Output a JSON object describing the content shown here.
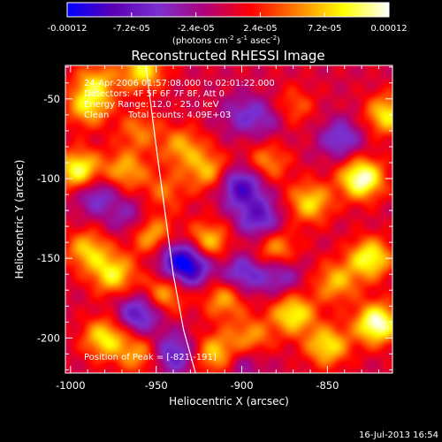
{
  "colorbar": {
    "tick_labels": [
      "-0.00012",
      "-7.2e-05",
      "-2.4e-05",
      "2.4e-05",
      "7.2e-05",
      "0.00012"
    ],
    "tick_values": [
      -0.00012,
      -7.2e-05,
      -2.4e-05,
      2.4e-05,
      7.2e-05,
      0.00012
    ],
    "range": [
      -0.00012,
      0.00012
    ],
    "colors": [
      "#0000ff",
      "#5a00b4",
      "#7a30d0",
      "#b00078",
      "#ff0000",
      "#ff8000",
      "#ffff00",
      "#ffffff"
    ],
    "unit_prefix": "(photons cm",
    "unit_sup1": "-2",
    "unit_mid": " s",
    "unit_sup2": "-1",
    "unit_mid2": " asec",
    "unit_sup3": "-2",
    "unit_suffix": ")"
  },
  "chart_data": {
    "type": "heatmap",
    "title": "Reconstructed RHESSI Image",
    "xlabel": "Heliocentric X (arcsec)",
    "ylabel": "Heliocentric Y (arcsec)",
    "xlim": [
      -1003,
      -812
    ],
    "ylim": [
      -222,
      -29
    ],
    "x_ticks": [
      -1000,
      -950,
      -900,
      -850
    ],
    "x_tick_labels": [
      "-1000",
      "-950",
      "-900",
      "-850"
    ],
    "y_ticks": [
      -50,
      -100,
      -150,
      -200
    ],
    "y_tick_labels": [
      "-50",
      "-100",
      "-150",
      "-200"
    ],
    "annotations": {
      "time_range": "24-Apr-2006 01:57:08.000 to 02:01:22.000",
      "detectors": "Detectors: 4F 5F 6F 7F 8F, Att 0",
      "energy": "Energy Range: 12.0 - 25.0 keV",
      "method": "Clean",
      "counts": "Total counts: 4.09E+03",
      "peak": "Position of Peak = [-821,-191]"
    },
    "peak_position": [
      -821,
      -191
    ],
    "limb_curve": [
      [
        -956,
        -29
      ],
      [
        -950,
        -80
      ],
      [
        -945,
        -120
      ],
      [
        -940,
        -160
      ],
      [
        -934,
        -195
      ],
      [
        -927,
        -222
      ]
    ],
    "sources": [
      {
        "x": -985,
        "y": -40,
        "amp": 0.55
      },
      {
        "x": -958,
        "y": -32,
        "amp": 0.7
      },
      {
        "x": -995,
        "y": -95,
        "amp": 0.85
      },
      {
        "x": -990,
        "y": -55,
        "amp": 0.6
      },
      {
        "x": -968,
        "y": -95,
        "amp": 0.55
      },
      {
        "x": -960,
        "y": -70,
        "amp": 0.4
      },
      {
        "x": -920,
        "y": -95,
        "amp": 0.55
      },
      {
        "x": -935,
        "y": -80,
        "amp": 0.5
      },
      {
        "x": -945,
        "y": -108,
        "amp": 0.35
      },
      {
        "x": -975,
        "y": -160,
        "amp": 0.7
      },
      {
        "x": -990,
        "y": -145,
        "amp": 0.6
      },
      {
        "x": -953,
        "y": -135,
        "amp": 0.6
      },
      {
        "x": -945,
        "y": -172,
        "amp": 0.55
      },
      {
        "x": -980,
        "y": -200,
        "amp": 0.7
      },
      {
        "x": -960,
        "y": -210,
        "amp": 0.5
      },
      {
        "x": -920,
        "y": -140,
        "amp": 0.65
      },
      {
        "x": -910,
        "y": -175,
        "amp": 0.55
      },
      {
        "x": -915,
        "y": -210,
        "amp": 0.65
      },
      {
        "x": -880,
        "y": -145,
        "amp": 0.55
      },
      {
        "x": -885,
        "y": -90,
        "amp": 0.45
      },
      {
        "x": -870,
        "y": -55,
        "amp": 0.35
      },
      {
        "x": -860,
        "y": -115,
        "amp": 0.65
      },
      {
        "x": -870,
        "y": -185,
        "amp": 0.75
      },
      {
        "x": -825,
        "y": -150,
        "amp": 0.8
      },
      {
        "x": -830,
        "y": -100,
        "amp": 1.0
      },
      {
        "x": -815,
        "y": -60,
        "amp": 0.7
      },
      {
        "x": -821,
        "y": -191,
        "amp": 1.0
      },
      {
        "x": -850,
        "y": -205,
        "amp": 0.7
      },
      {
        "x": -845,
        "y": -165,
        "amp": 0.55
      },
      {
        "x": -895,
        "y": -200,
        "amp": 0.5
      },
      {
        "x": -900,
        "y": -60,
        "amp": -0.35
      },
      {
        "x": -885,
        "y": -62,
        "amp": -0.3
      },
      {
        "x": -900,
        "y": -105,
        "amp": -0.75
      },
      {
        "x": -890,
        "y": -125,
        "amp": -0.6
      },
      {
        "x": -930,
        "y": -155,
        "amp": -0.8
      },
      {
        "x": -938,
        "y": -150,
        "amp": -0.5
      },
      {
        "x": -960,
        "y": -185,
        "amp": -0.65
      },
      {
        "x": -985,
        "y": -110,
        "amp": -0.5
      },
      {
        "x": -940,
        "y": -210,
        "amp": -0.6
      },
      {
        "x": -900,
        "y": -160,
        "amp": -0.55
      },
      {
        "x": -878,
        "y": -160,
        "amp": -0.45
      },
      {
        "x": -842,
        "y": -75,
        "amp": -0.5
      },
      {
        "x": -900,
        "y": -215,
        "amp": -0.35
      },
      {
        "x": -965,
        "y": -125,
        "amp": -0.35
      }
    ],
    "source_width": 9
  },
  "footer": {
    "timestamp": "16-Jul-2013 16:54"
  }
}
